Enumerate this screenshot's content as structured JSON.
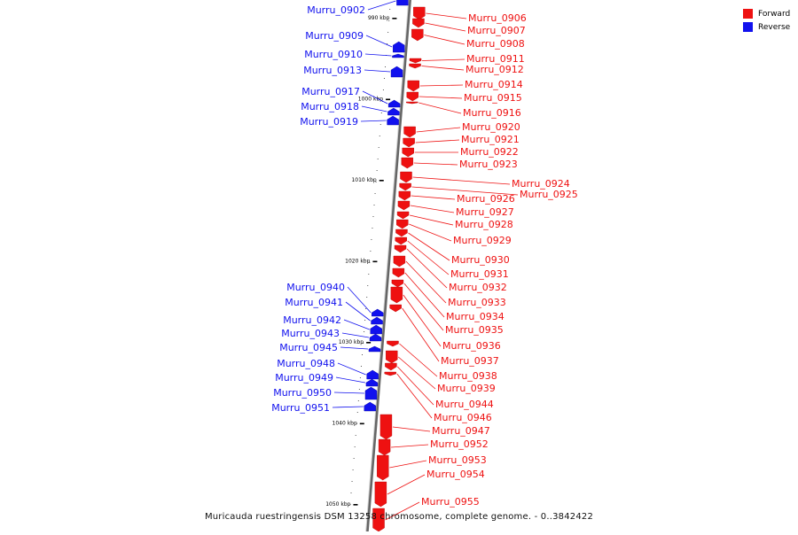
{
  "legend": {
    "forward_label": "Forward",
    "reverse_label": "Reverse",
    "forward_color": "#ee1111",
    "reverse_color": "#1111ee"
  },
  "caption": "Muricauda ruestringensis DSM 13258 chromosome, complete genome. - 0..3842422",
  "ticks": [
    {
      "label": "990 kbp",
      "kbp": 990
    },
    {
      "label": "1000 kbp",
      "kbp": 1000
    },
    {
      "label": "1010 kbp",
      "kbp": 1010
    },
    {
      "label": "1020 kbp",
      "kbp": 1020
    },
    {
      "label": "1030 kbp",
      "kbp": 1030
    },
    {
      "label": "1040 kbp",
      "kbp": 1040
    },
    {
      "label": "1050 kbp",
      "kbp": 1050
    }
  ],
  "forward_genes": [
    "Murru_0906",
    "Murru_0907",
    "Murru_0908",
    "Murru_0911",
    "Murru_0912",
    "Murru_0914",
    "Murru_0915",
    "Murru_0916",
    "Murru_0920",
    "Murru_0921",
    "Murru_0922",
    "Murru_0923",
    "Murru_0924",
    "Murru_0925",
    "Murru_0926",
    "Murru_0927",
    "Murru_0928",
    "Murru_0929",
    "Murru_0930",
    "Murru_0931",
    "Murru_0932",
    "Murru_0933",
    "Murru_0934",
    "Murru_0935",
    "Murru_0936",
    "Murru_0937",
    "Murru_0938",
    "Murru_0939",
    "Murru_0944",
    "Murru_0946",
    "Murru_0947",
    "Murru_0952",
    "Murru_0953",
    "Murru_0954",
    "Murru_0955"
  ],
  "reverse_genes": [
    "Murru_0902",
    "Murru_0909",
    "Murru_0910",
    "Murru_0913",
    "Murru_0917",
    "Murru_0918",
    "Murru_0919",
    "Murru_0940",
    "Murru_0941",
    "Murru_0942",
    "Murru_0943",
    "Murru_0945",
    "Murru_0948",
    "Murru_0949",
    "Murru_0950",
    "Murru_0951"
  ]
}
